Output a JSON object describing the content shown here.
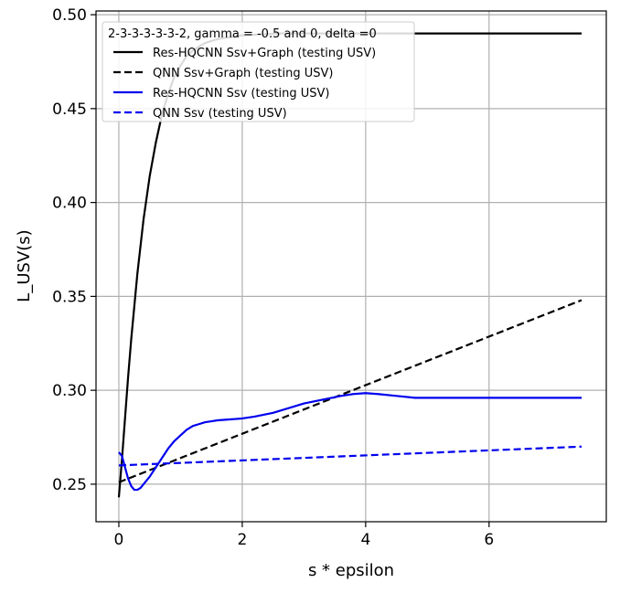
{
  "chart_data": {
    "type": "line",
    "xlabel": "s * epsilon",
    "ylabel": "L_USV(s)",
    "xlim": [
      -0.37,
      7.9
    ],
    "ylim": [
      0.23,
      0.502
    ],
    "xticks": [
      0,
      2,
      4,
      6
    ],
    "yticks": [
      0.25,
      0.3,
      0.35,
      0.4,
      0.45,
      0.5
    ],
    "ytick_labels": [
      "0.25",
      "0.30",
      "0.35",
      "0.40",
      "0.45",
      "0.50"
    ],
    "grid": true,
    "legend": {
      "title": "2-3-3-3-3-3-2, gamma = -0.5 and 0, delta =0",
      "placement": "top-left"
    },
    "series": [
      {
        "name": "Res-HQCNN Ssv+Graph (testing USV)",
        "color": "#000000",
        "dash": "solid",
        "x": [
          0,
          0.05,
          0.1,
          0.15,
          0.2,
          0.3,
          0.4,
          0.5,
          0.6,
          0.7,
          0.8,
          0.9,
          1.0,
          1.1,
          1.2,
          1.4,
          1.6,
          1.8,
          2.0,
          2.3,
          2.6,
          3.0,
          3.5,
          4.0,
          5.0,
          6.0,
          7.0,
          7.5
        ],
        "y": [
          0.243,
          0.263,
          0.285,
          0.307,
          0.327,
          0.362,
          0.391,
          0.414,
          0.432,
          0.447,
          0.458,
          0.467,
          0.473,
          0.478,
          0.481,
          0.485,
          0.487,
          0.488,
          0.489,
          0.4895,
          0.49,
          0.49,
          0.49,
          0.49,
          0.49,
          0.49,
          0.49,
          0.49
        ]
      },
      {
        "name": "QNN Ssv+Graph (testing USV)",
        "color": "#000000",
        "dash": "dashed",
        "x": [
          0,
          7.5
        ],
        "y": [
          0.251,
          0.348
        ]
      },
      {
        "name": "Res-HQCNN Ssv (testing USV)",
        "color": "#0000ee",
        "dash": "solid",
        "x": [
          0,
          0.05,
          0.1,
          0.15,
          0.2,
          0.25,
          0.3,
          0.35,
          0.4,
          0.5,
          0.6,
          0.7,
          0.8,
          0.9,
          1.0,
          1.1,
          1.2,
          1.3,
          1.4,
          1.5,
          1.6,
          1.8,
          2.0,
          2.2,
          2.5,
          2.8,
          3.0,
          3.3,
          3.6,
          3.8,
          4.0,
          4.2,
          4.5,
          4.8,
          5.0,
          5.5,
          6.0,
          6.5,
          7.0,
          7.5
        ],
        "y": [
          0.267,
          0.265,
          0.259,
          0.253,
          0.249,
          0.247,
          0.247,
          0.248,
          0.25,
          0.254,
          0.259,
          0.264,
          0.269,
          0.273,
          0.276,
          0.279,
          0.281,
          0.282,
          0.283,
          0.2835,
          0.284,
          0.2845,
          0.285,
          0.286,
          0.288,
          0.291,
          0.293,
          0.295,
          0.297,
          0.298,
          0.2985,
          0.298,
          0.297,
          0.296,
          0.296,
          0.296,
          0.296,
          0.296,
          0.296,
          0.296
        ]
      },
      {
        "name": "QNN Ssv (testing USV)",
        "color": "#0000ee",
        "dash": "dashed",
        "x": [
          0,
          7.5
        ],
        "y": [
          0.26,
          0.27
        ]
      }
    ]
  }
}
